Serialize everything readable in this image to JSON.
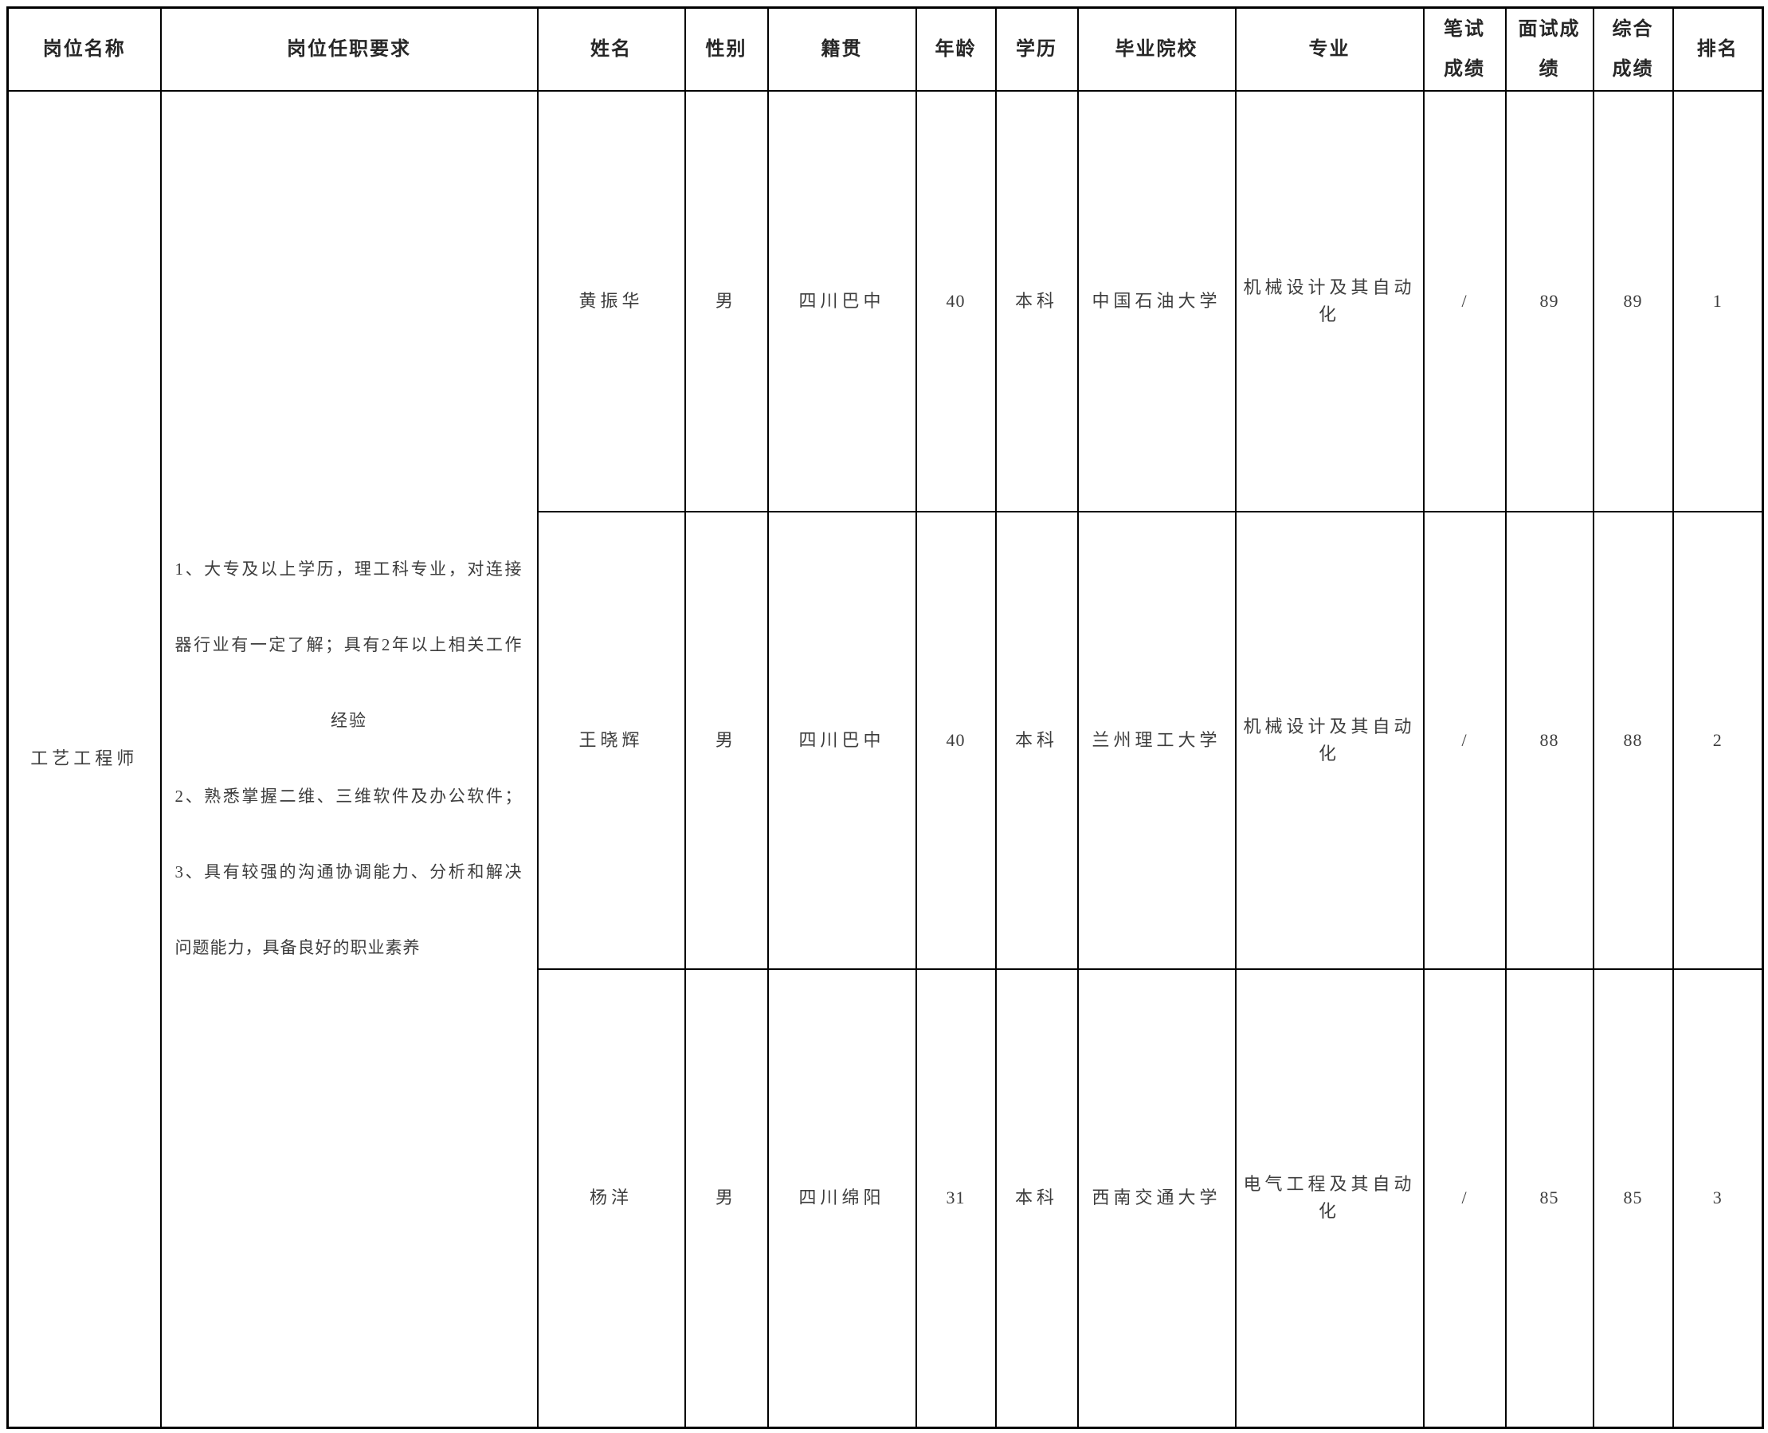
{
  "table": {
    "headers": {
      "position": "岗位名称",
      "requirements": "岗位任职要求",
      "name": "姓名",
      "gender": "性别",
      "hometown": "籍贯",
      "age": "年龄",
      "education": "学历",
      "school": "毕业院校",
      "major": "专业",
      "written_score": "笔试\n成绩",
      "interview_score": "面试成\n绩",
      "overall_score": "综合\n成绩",
      "rank": "排名"
    },
    "position_name": "工艺工程师",
    "requirements_lines": {
      "l1": "1、大专及以上学历，理工科专业，对连接",
      "l2": "器行业有一定了解；具有2年以上相关工作",
      "l3": "经验",
      "l4": "2、熟悉掌握二维、三维软件及办公软件；",
      "l5": "3、具有较强的沟通协调能力、分析和解决",
      "l6": "问题能力，具备良好的职业素养"
    },
    "rows": [
      {
        "name": "黄振华",
        "gender": "男",
        "hometown": "四川巴中",
        "age": "40",
        "education": "本科",
        "school": "中国石油大学",
        "major": "机械设计及其自动化",
        "written_score": "/",
        "interview_score": "89",
        "overall_score": "89",
        "rank": "1"
      },
      {
        "name": "王晓辉",
        "gender": "男",
        "hometown": "四川巴中",
        "age": "40",
        "education": "本科",
        "school": "兰州理工大学",
        "major": "机械设计及其自动化",
        "written_score": "/",
        "interview_score": "88",
        "overall_score": "88",
        "rank": "2"
      },
      {
        "name": "杨洋",
        "gender": "男",
        "hometown": "四川绵阳",
        "age": "31",
        "education": "本科",
        "school": "西南交通大学",
        "major": "电气工程及其自动化",
        "written_score": "/",
        "interview_score": "85",
        "overall_score": "85",
        "rank": "3"
      }
    ],
    "colors": {
      "border": "#000000",
      "body_text": "#3d3d3d",
      "header_text": "#262626",
      "background": "#ffffff"
    }
  }
}
